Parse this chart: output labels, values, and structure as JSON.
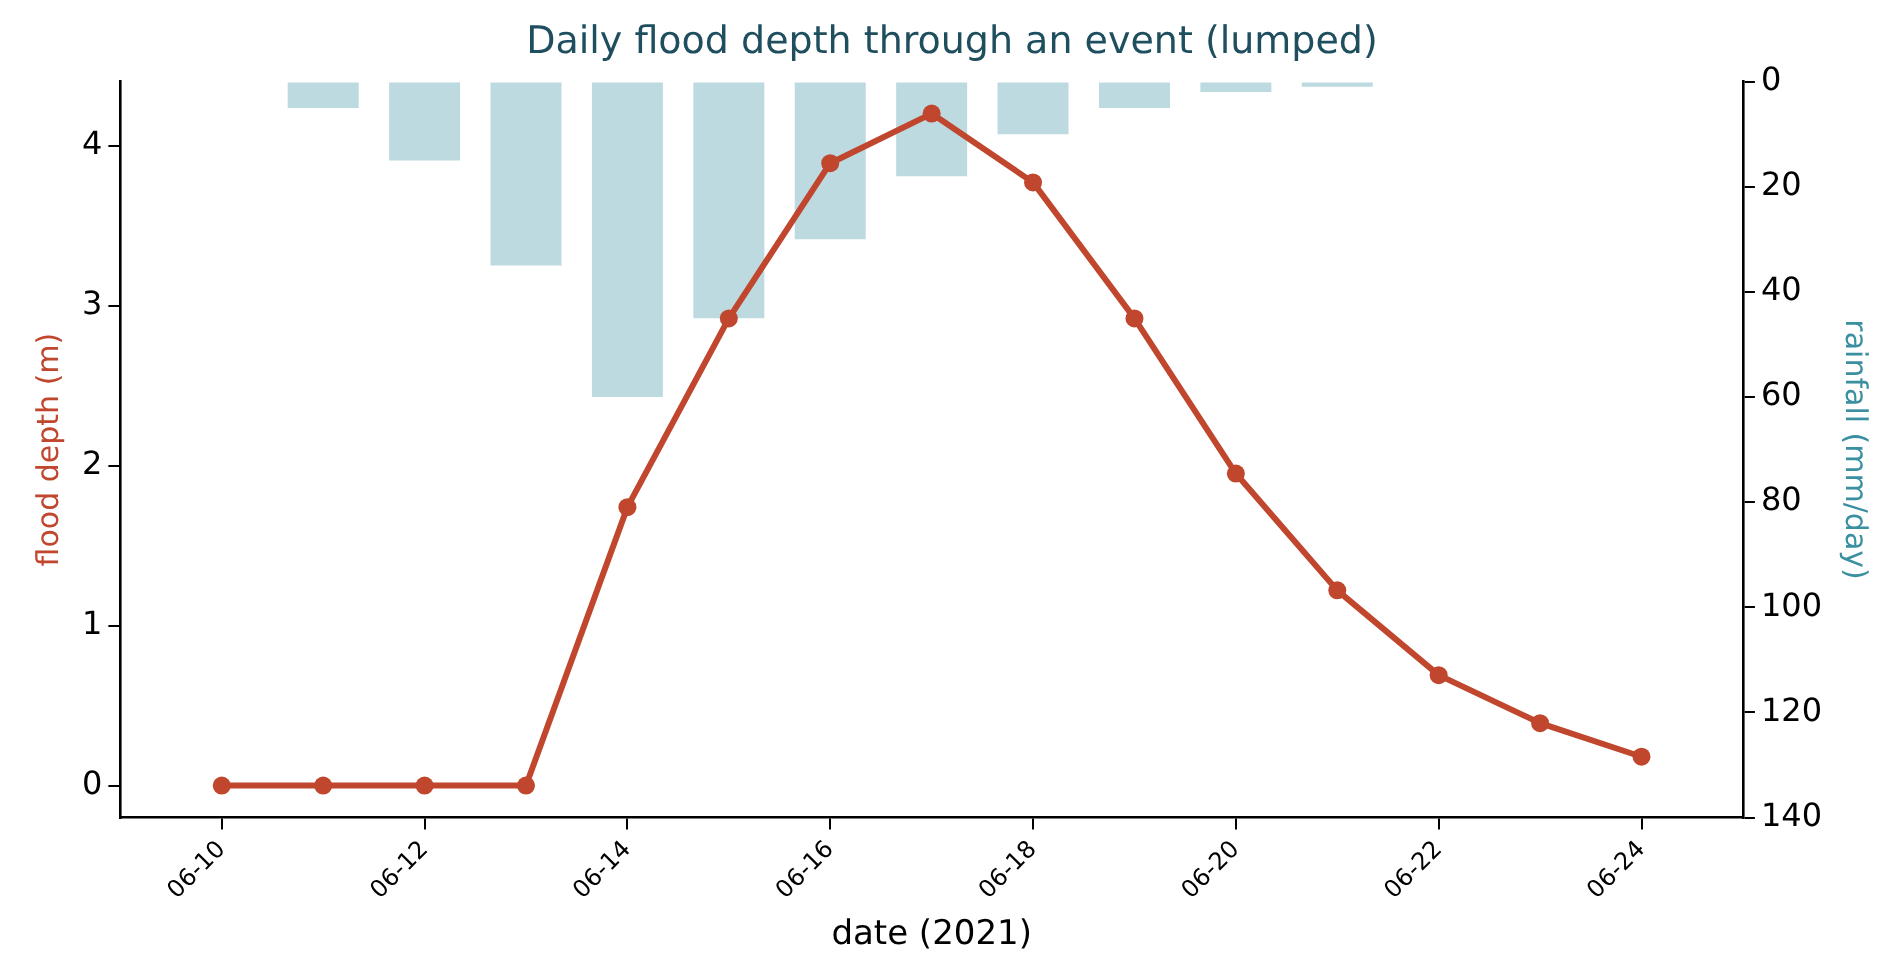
{
  "chart_data": {
    "type": "line",
    "title": "Daily flood depth through an event (lumped)",
    "xlabel": "date (2021)",
    "ylabel": "flood depth (m)",
    "y2label": "rainfall (mm/day)",
    "x": [
      "2021-06-10",
      "2021-06-11",
      "2021-06-12",
      "2021-06-13",
      "2021-06-14",
      "2021-06-15",
      "2021-06-16",
      "2021-06-17",
      "2021-06-18",
      "2021-06-19",
      "2021-06-20",
      "2021-06-21",
      "2021-06-22",
      "2021-06-23",
      "2021-06-24"
    ],
    "series": [
      {
        "type": "bar",
        "axis": "y2",
        "color": "#bcdae0",
        "x": [
          "2021-06-11",
          "2021-06-12",
          "2021-06-13",
          "2021-06-14",
          "2021-06-15",
          "2021-06-16",
          "2021-06-17",
          "2021-06-18",
          "2021-06-19",
          "2021-06-20",
          "2021-06-21"
        ],
        "values": [
          5,
          15,
          35,
          60,
          45,
          30,
          18,
          10,
          5,
          2,
          1
        ]
      },
      {
        "color": "#c0462e",
        "marker": "circle",
        "line_style": "solid",
        "values": [
          0,
          0,
          0,
          0,
          1.74,
          2.92,
          3.89,
          4.2,
          3.77,
          2.92,
          1.95,
          1.22,
          0.69,
          0.39,
          0.18
        ]
      }
    ],
    "xlim": [
      "2021-06-09",
      "2021-06-25"
    ],
    "xticks": [
      {
        "value": "2021-06-10",
        "label": "06-10"
      },
      {
        "value": "2021-06-12",
        "label": "06-12"
      },
      {
        "value": "2021-06-14",
        "label": "06-14"
      },
      {
        "value": "2021-06-16",
        "label": "06-16"
      },
      {
        "value": "2021-06-18",
        "label": "06-18"
      },
      {
        "value": "2021-06-20",
        "label": "06-20"
      },
      {
        "value": "2021-06-22",
        "label": "06-22"
      },
      {
        "value": "2021-06-24",
        "label": "06-24"
      }
    ],
    "ylim": [
      -0.2,
      4.4
    ],
    "yticks": [
      0,
      1,
      2,
      3,
      4
    ],
    "y2lim": [
      140,
      0
    ],
    "y2ticks": [
      0,
      20,
      40,
      60,
      80,
      100,
      120,
      140
    ],
    "grid": false,
    "legend": false
  }
}
